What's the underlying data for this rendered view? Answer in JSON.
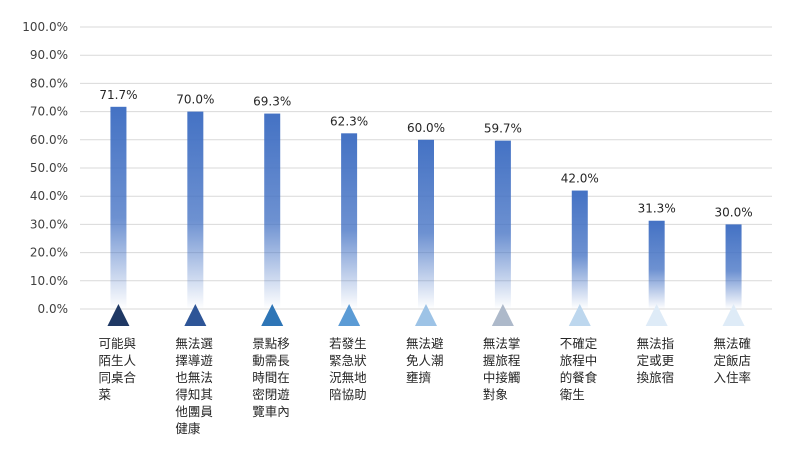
{
  "chart_data": {
    "type": "bar",
    "categories": [
      "可能與陌生人同桌合菜",
      "無法選擇導遊也無法得知其他團員健康",
      "景點移動需長時間在密閉遊覽車內",
      "若發生緊急狀況無地陪協助",
      "無法避免人潮壅擠",
      "無法掌握旅程中接觸對象",
      "不確定旅程中的餐食衛生",
      "無法指定或更換旅宿",
      "無法確定飯店入住率"
    ],
    "category_lines": [
      [
        "可能與",
        "陌生人",
        "同桌合",
        "菜"
      ],
      [
        "無法選",
        "擇導遊",
        "也無法",
        "得知其",
        "他團員",
        "健康"
      ],
      [
        "景點移",
        "動需長",
        "時間在",
        "密閉遊",
        "覽車內"
      ],
      [
        "若發生",
        "緊急狀",
        "況無地",
        "陪協助"
      ],
      [
        "無法避",
        "免人潮",
        "壅擠"
      ],
      [
        "無法掌",
        "握旅程",
        "中接觸",
        "對象"
      ],
      [
        "不確定",
        "旅程中",
        "的餐食",
        "衛生"
      ],
      [
        "無法指",
        "定或更",
        "換旅宿"
      ],
      [
        "無法確",
        "定飯店",
        "入住率"
      ]
    ],
    "values": [
      71.7,
      70.0,
      69.3,
      62.3,
      60.0,
      59.7,
      42.0,
      31.3,
      30.0
    ],
    "value_labels": [
      "71.7%",
      "70.0%",
      "69.3%",
      "62.3%",
      "60.0%",
      "59.7%",
      "42.0%",
      "31.3%",
      "30.0%"
    ],
    "y_ticks": [
      "0.0%",
      "10.0%",
      "20.0%",
      "30.0%",
      "40.0%",
      "50.0%",
      "60.0%",
      "70.0%",
      "80.0%",
      "90.0%",
      "100.0%"
    ],
    "ylim": [
      0,
      100
    ],
    "grid": true,
    "colors": {
      "bar": "#4472c4",
      "marker_colors": [
        "#1f3864",
        "#2e5597",
        "#2e75b6",
        "#5b9bd5",
        "#9dc3e6",
        "#adb9ca",
        "#bdd7ee",
        "#deebf7",
        "#deebf7"
      ]
    }
  }
}
